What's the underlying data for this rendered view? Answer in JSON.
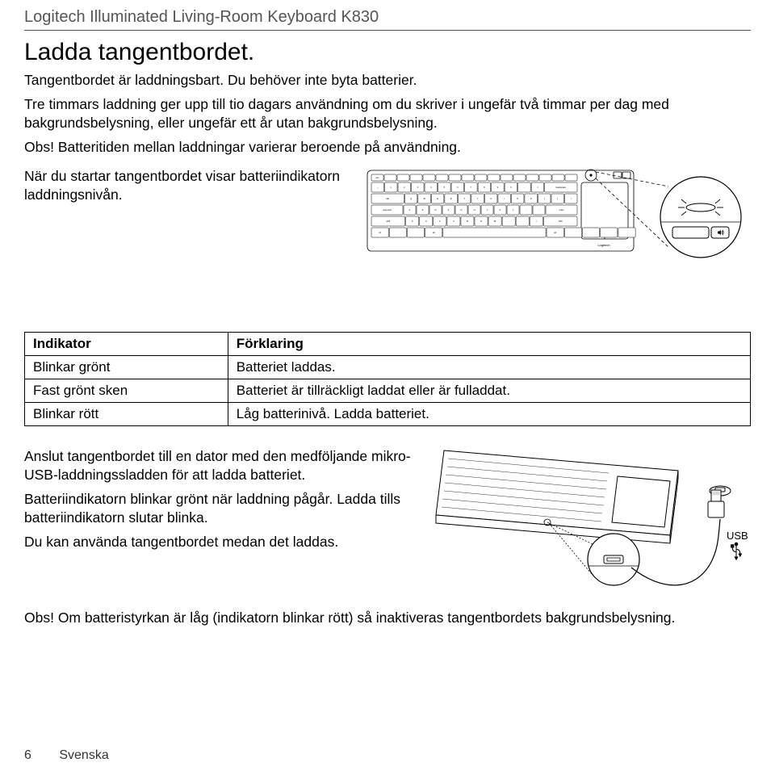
{
  "header": {
    "product": "Logitech Illuminated Living-Room Keyboard K830"
  },
  "title": "Ladda tangentbordet.",
  "intro": "Tangentbordet är laddningsbart. Du behöver inte byta batterier.",
  "para1": "Tre timmars laddning ger upp till tio dagars användning om du skriver i ungefär två timmar per dag med bakgrundsbelysning, eller ungefär ett år utan bakgrundsbelysning.",
  "note1": "Obs! Batteritiden mellan laddningar varierar beroende på användning.",
  "para2": "När du startar tangentbordet visar batteriindikatorn laddningsnivån.",
  "table": {
    "col1": "Indikator",
    "col2": "Förklaring",
    "rows": [
      [
        "Blinkar grönt",
        "Batteriet laddas."
      ],
      [
        "Fast grönt sken",
        "Batteriet är tillräckligt laddat eller är fulladdat."
      ],
      [
        "Blinkar rött",
        "Låg batterinivå. Ladda batteriet."
      ]
    ]
  },
  "para3": "Anslut tangentbordet till en dator med den medföljande mikro-USB-laddningssladden för att ladda batteriet.",
  "para4": "Batteriindikatorn blinkar grönt när laddning pågår. Ladda tills batteriindikatorn slutar blinka.",
  "para5": "Du kan använda tangentbordet medan det laddas.",
  "note2": "Obs! Om batteristyrkan är låg (indikatorn blinkar rött) så inaktiveras tangentbordets bakgrundsbelysning.",
  "usb_label": "USB",
  "footer": {
    "page": "6",
    "lang": "Svenska"
  },
  "kb": {
    "row_fn": [
      "esc",
      "",
      "",
      "",
      "",
      "",
      "",
      "",
      "",
      "",
      "",
      "",
      "",
      "",
      "",
      ""
    ],
    "row_num": [
      "~",
      "1",
      "2",
      "3",
      "4",
      "5",
      "6",
      "7",
      "8",
      "9",
      "0",
      "-",
      "=",
      "backspace"
    ],
    "row_q": [
      "tab",
      "Q",
      "W",
      "E",
      "R",
      "T",
      "Y",
      "U",
      "I",
      "O",
      "P",
      "[",
      "]",
      "\\"
    ],
    "row_a": [
      "caps lock",
      "A",
      "S",
      "D",
      "F",
      "G",
      "H",
      "J",
      "K",
      "L",
      ";",
      "'",
      "enter"
    ],
    "row_z": [
      "shift",
      "Z",
      "X",
      "C",
      "V",
      "B",
      "N",
      "M",
      ",",
      ".",
      "/",
      "shift"
    ],
    "row_sp": [
      "ctl",
      "",
      "",
      "alt",
      "",
      "alt",
      "",
      "",
      "",
      ""
    ]
  }
}
